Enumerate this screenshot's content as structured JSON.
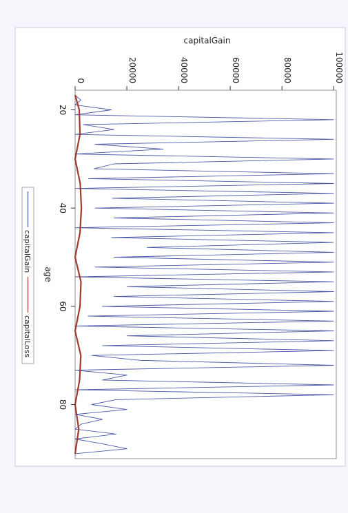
{
  "chart_data": {
    "type": "line",
    "orientation": "rotated-90-clockwise",
    "title": "",
    "xlabel": "age",
    "ylabel": "capitalGain",
    "xlim": [
      16,
      91
    ],
    "ylim": [
      0,
      101000
    ],
    "x_ticks": [
      20,
      40,
      60,
      80
    ],
    "y_ticks": [
      0,
      20000,
      40000,
      60000,
      80000,
      100000
    ],
    "grid": false,
    "legend_position": "left",
    "series": [
      {
        "name": "capitalGain",
        "color": "#4a57a6",
        "values_desc": "dense zig-zag, values 0-100000, mostly 0-15000 with many spikes to 99999 between ages 22-78",
        "points": [
          [
            17,
            0
          ],
          [
            18,
            2174
          ],
          [
            19,
            0
          ],
          [
            20,
            14084
          ],
          [
            21,
            0
          ],
          [
            22,
            99999
          ],
          [
            23,
            3103
          ],
          [
            24,
            15024
          ],
          [
            25,
            0
          ],
          [
            26,
            99999
          ],
          [
            27,
            7688
          ],
          [
            28,
            34095
          ],
          [
            29,
            0
          ],
          [
            30,
            99999
          ],
          [
            31,
            15024
          ],
          [
            32,
            7298
          ],
          [
            33,
            99999
          ],
          [
            34,
            5178
          ],
          [
            35,
            99999
          ],
          [
            36,
            0
          ],
          [
            37,
            99999
          ],
          [
            38,
            14344
          ],
          [
            39,
            99999
          ],
          [
            40,
            7688
          ],
          [
            41,
            99999
          ],
          [
            42,
            15024
          ],
          [
            43,
            99999
          ],
          [
            44,
            0
          ],
          [
            45,
            99999
          ],
          [
            46,
            14084
          ],
          [
            47,
            99999
          ],
          [
            48,
            27828
          ],
          [
            49,
            99999
          ],
          [
            50,
            15024
          ],
          [
            51,
            99999
          ],
          [
            52,
            7688
          ],
          [
            53,
            99999
          ],
          [
            54,
            0
          ],
          [
            55,
            99999
          ],
          [
            56,
            20051
          ],
          [
            57,
            99999
          ],
          [
            58,
            15024
          ],
          [
            59,
            99999
          ],
          [
            60,
            10520
          ],
          [
            61,
            99999
          ],
          [
            62,
            5013
          ],
          [
            63,
            99999
          ],
          [
            64,
            0
          ],
          [
            65,
            99999
          ],
          [
            66,
            20051
          ],
          [
            67,
            99999
          ],
          [
            68,
            10605
          ],
          [
            69,
            99999
          ],
          [
            70,
            6418
          ],
          [
            71,
            25236
          ],
          [
            72,
            99999
          ],
          [
            73,
            0
          ],
          [
            74,
            20051
          ],
          [
            75,
            10566
          ],
          [
            76,
            99999
          ],
          [
            77,
            0
          ],
          [
            78,
            99999
          ],
          [
            79,
            15831
          ],
          [
            80,
            6418
          ],
          [
            81,
            20051
          ],
          [
            82,
            0
          ],
          [
            83,
            10605
          ],
          [
            84,
            2329
          ],
          [
            85,
            0
          ],
          [
            86,
            15831
          ],
          [
            87,
            0
          ],
          [
            88,
            10605
          ],
          [
            89,
            20051
          ],
          [
            90,
            0
          ]
        ]
      },
      {
        "name": "capitalLoss",
        "color": "#a23a2e",
        "values_desc": "narrow band near zero, values 0-4356",
        "points": [
          [
            17,
            0
          ],
          [
            20,
            1602
          ],
          [
            25,
            1887
          ],
          [
            30,
            0
          ],
          [
            35,
            1977
          ],
          [
            40,
            2415
          ],
          [
            45,
            1902
          ],
          [
            50,
            0
          ],
          [
            55,
            2258
          ],
          [
            60,
            1887
          ],
          [
            65,
            0
          ],
          [
            70,
            2206
          ],
          [
            75,
            1735
          ],
          [
            80,
            0
          ],
          [
            85,
            1411
          ],
          [
            90,
            0
          ]
        ]
      }
    ]
  },
  "legend": {
    "items": [
      {
        "label": "capitalGain",
        "color": "#4a57a6"
      },
      {
        "label": "capitalLoss",
        "color": "#a23a2e"
      }
    ]
  }
}
